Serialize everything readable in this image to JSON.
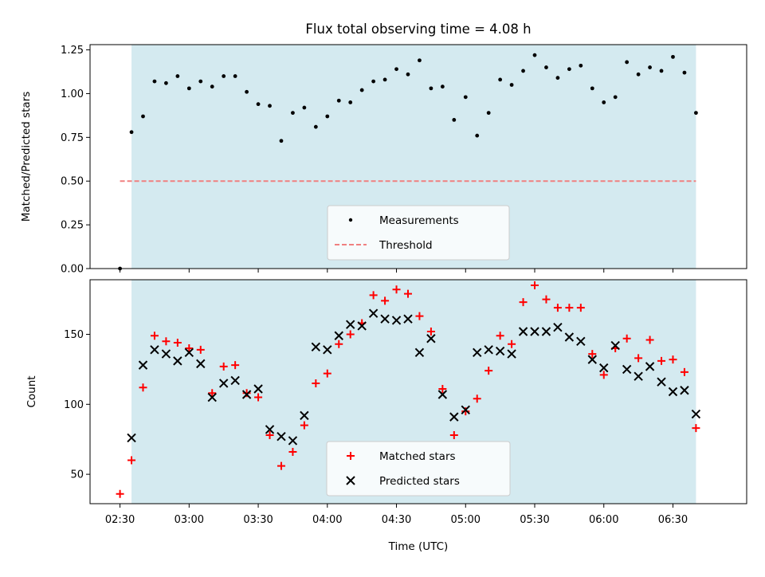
{
  "chart_data": {
    "type": "scatter",
    "title": "Flux total observing time = 4.08 h",
    "xlabel": "Time (UTC)",
    "x_ticks": [
      "02:30",
      "03:00",
      "03:30",
      "04:00",
      "04:30",
      "05:00",
      "05:30",
      "06:00",
      "06:30"
    ],
    "x_range": [
      "02:17",
      "07:02"
    ],
    "shaded_interval": [
      "02:35",
      "06:40"
    ],
    "colors": {
      "shade": "#d4eaf0",
      "matched": "#ff0000",
      "predicted": "#000000",
      "threshold": "#f08080"
    },
    "panels": [
      {
        "ylabel": "Matched/Predicted stars",
        "ylim": [
          0.0,
          1.28
        ],
        "y_ticks": [
          "0.00",
          "0.25",
          "0.50",
          "0.75",
          "1.00",
          "1.25"
        ],
        "legend_position": "bottom-center",
        "series": [
          {
            "name": "Measurements",
            "marker": "dot",
            "x": [
              "02:30",
              "02:35",
              "02:40",
              "02:45",
              "02:50",
              "02:55",
              "03:00",
              "03:05",
              "03:10",
              "03:15",
              "03:20",
              "03:25",
              "03:30",
              "03:35",
              "03:40",
              "03:45",
              "03:50",
              "03:55",
              "04:00",
              "04:05",
              "04:10",
              "04:15",
              "04:20",
              "04:25",
              "04:30",
              "04:35",
              "04:40",
              "04:45",
              "04:50",
              "04:55",
              "05:00",
              "05:05",
              "05:10",
              "05:15",
              "05:20",
              "05:25",
              "05:30",
              "05:35",
              "05:40",
              "05:45",
              "05:50",
              "05:55",
              "06:00",
              "06:05",
              "06:10",
              "06:15",
              "06:20",
              "06:25",
              "06:30",
              "06:35",
              "06:40"
            ],
            "y": [
              0.0,
              0.78,
              0.87,
              1.07,
              1.06,
              1.1,
              1.03,
              1.07,
              1.04,
              1.1,
              1.1,
              1.01,
              0.94,
              0.93,
              0.73,
              0.89,
              0.92,
              0.81,
              0.87,
              0.96,
              0.95,
              1.02,
              1.07,
              1.08,
              1.14,
              1.11,
              1.19,
              1.03,
              1.04,
              0.85,
              0.98,
              0.76,
              0.89,
              1.08,
              1.05,
              1.13,
              1.22,
              1.15,
              1.09,
              1.14,
              1.16,
              1.03,
              0.95,
              0.98,
              1.18,
              1.11,
              1.15,
              1.13,
              1.21,
              1.12,
              0.89
            ]
          },
          {
            "name": "Threshold",
            "marker": "dashed-line",
            "x": [
              "02:30",
              "06:40"
            ],
            "y": [
              0.5,
              0.5
            ]
          }
        ]
      },
      {
        "ylabel": "Count",
        "ylim": [
          29,
          189
        ],
        "y_ticks": [
          "50",
          "100",
          "150"
        ],
        "legend_position": "bottom-center",
        "series": [
          {
            "name": "Matched stars",
            "marker": "plus",
            "x": [
              "02:30",
              "02:35",
              "02:40",
              "02:45",
              "02:50",
              "02:55",
              "03:00",
              "03:05",
              "03:10",
              "03:15",
              "03:20",
              "03:25",
              "03:30",
              "03:35",
              "03:40",
              "03:45",
              "03:50",
              "03:55",
              "04:00",
              "04:05",
              "04:10",
              "04:15",
              "04:20",
              "04:25",
              "04:30",
              "04:35",
              "04:40",
              "04:45",
              "04:50",
              "04:55",
              "05:00",
              "05:05",
              "05:10",
              "05:15",
              "05:20",
              "05:25",
              "05:30",
              "05:35",
              "05:40",
              "05:45",
              "05:50",
              "05:55",
              "06:00",
              "06:05",
              "06:10",
              "06:15",
              "06:20",
              "06:25",
              "06:30",
              "06:35",
              "06:40"
            ],
            "y": [
              36,
              60,
              112,
              149,
              145,
              144,
              140,
              139,
              108,
              127,
              128,
              108,
              105,
              78,
              56,
              66,
              85,
              115,
              122,
              143,
              150,
              158,
              178,
              174,
              182,
              179,
              163,
              152,
              111,
              78,
              95,
              104,
              124,
              149,
              143,
              173,
              185,
              175,
              169,
              169,
              169,
              136,
              121,
              140,
              147,
              133,
              146,
              131,
              132,
              123,
              83
            ]
          },
          {
            "name": "Predicted stars",
            "marker": "x",
            "x": [
              "02:30",
              "02:35",
              "02:40",
              "02:45",
              "02:50",
              "02:55",
              "03:00",
              "03:05",
              "03:10",
              "03:15",
              "03:20",
              "03:25",
              "03:30",
              "03:35",
              "03:40",
              "03:45",
              "03:50",
              "03:55",
              "04:00",
              "04:05",
              "04:10",
              "04:15",
              "04:20",
              "04:25",
              "04:30",
              "04:35",
              "04:40",
              "04:45",
              "04:50",
              "04:55",
              "05:00",
              "05:05",
              "05:10",
              "05:15",
              "05:20",
              "05:25",
              "05:30",
              "05:35",
              "05:40",
              "05:45",
              "05:50",
              "05:55",
              "06:00",
              "06:05",
              "06:10",
              "06:15",
              "06:20",
              "06:25",
              "06:30",
              "06:35",
              "06:40"
            ],
            "y": [
              null,
              76,
              128,
              139,
              136,
              131,
              137,
              129,
              105,
              115,
              117,
              107,
              111,
              82,
              77,
              74,
              92,
              141,
              139,
              149,
              157,
              156,
              165,
              161,
              160,
              161,
              137,
              147,
              107,
              91,
              96,
              137,
              139,
              138,
              136,
              152,
              152,
              152,
              155,
              148,
              145,
              132,
              126,
              142,
              125,
              120,
              127,
              116,
              109,
              110,
              93
            ]
          }
        ]
      }
    ]
  }
}
